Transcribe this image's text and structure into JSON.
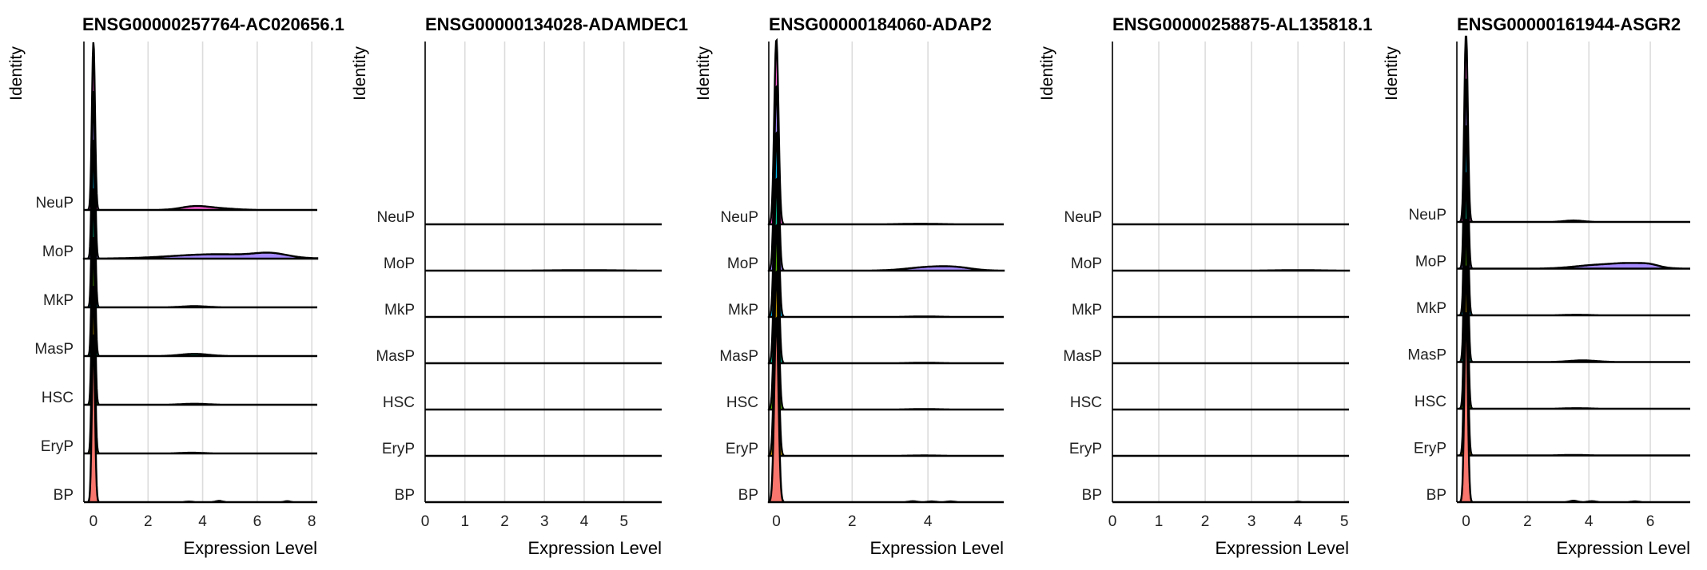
{
  "chart_data": [
    {
      "type": "ridgeline",
      "title": "ENSG00000257764-AC020656.1",
      "xlabel": "Expression Level",
      "ylabel": "Identity",
      "categories": [
        "BP",
        "EryP",
        "HSC",
        "MasP",
        "MkP",
        "MoP",
        "NeuP"
      ],
      "xlim": [
        -0.35,
        8.2
      ],
      "xticks": [
        0,
        2,
        4,
        6,
        8
      ],
      "peak_height_rows": 3.45,
      "series": [
        {
          "name": "BP",
          "color": "#F8766D",
          "bumps": [
            [
              3.5,
              0.012,
              0.12
            ],
            [
              4.6,
              0.025,
              0.12
            ],
            [
              7.1,
              0.02,
              0.1
            ]
          ]
        },
        {
          "name": "EryP",
          "color": "#C49A00",
          "bumps": [
            [
              3.6,
              0.015,
              0.4
            ]
          ]
        },
        {
          "name": "HSC",
          "color": "#53B400",
          "bumps": [
            [
              3.7,
              0.02,
              0.45
            ]
          ]
        },
        {
          "name": "MasP",
          "color": "#00C094",
          "bumps": [
            [
              3.7,
              0.045,
              0.5
            ]
          ]
        },
        {
          "name": "MkP",
          "color": "#00B6EB",
          "bumps": [
            [
              3.7,
              0.025,
              0.45
            ]
          ]
        },
        {
          "name": "MoP",
          "color": "#A58AFF",
          "bumps": [
            [
              4.5,
              0.09,
              1.6
            ],
            [
              6.5,
              0.08,
              0.6
            ]
          ]
        },
        {
          "name": "NeuP",
          "color": "#FB61D7",
          "bumps": [
            [
              3.7,
              0.07,
              0.5
            ],
            [
              4.6,
              0.03,
              0.6
            ]
          ]
        }
      ]
    },
    {
      "type": "ridgeline",
      "title": "ENSG00000134028-ADAMDEC1",
      "xlabel": "Expression Level",
      "ylabel": "Identity",
      "categories": [
        "BP",
        "EryP",
        "HSC",
        "MasP",
        "MkP",
        "MoP",
        "NeuP"
      ],
      "xlim": [
        0,
        5.95
      ],
      "xticks": [
        0,
        1,
        2,
        3,
        4,
        5
      ],
      "peak_height_rows": 0,
      "series": [
        {
          "name": "BP",
          "color": "#F8766D",
          "bumps": []
        },
        {
          "name": "EryP",
          "color": "#C49A00",
          "bumps": []
        },
        {
          "name": "HSC",
          "color": "#53B400",
          "bumps": []
        },
        {
          "name": "MasP",
          "color": "#00C094",
          "bumps": []
        },
        {
          "name": "MkP",
          "color": "#00B6EB",
          "bumps": []
        },
        {
          "name": "MoP",
          "color": "#A58AFF",
          "bumps": [
            [
              4.0,
              0.01,
              0.8
            ]
          ]
        },
        {
          "name": "NeuP",
          "color": "#FB61D7",
          "bumps": []
        }
      ]
    },
    {
      "type": "ridgeline",
      "title": "ENSG00000184060-ADAP2",
      "xlabel": "Expression Level",
      "ylabel": "Identity",
      "categories": [
        "BP",
        "EryP",
        "HSC",
        "MasP",
        "MkP",
        "MoP",
        "NeuP"
      ],
      "xlim": [
        -0.2,
        6.0
      ],
      "xticks": [
        0,
        2,
        4
      ],
      "peak_height_rows": 4.0,
      "series": [
        {
          "name": "BP",
          "color": "#F8766D",
          "bumps": [
            [
              3.6,
              0.02,
              0.1
            ],
            [
              4.1,
              0.015,
              0.1
            ],
            [
              4.6,
              0.015,
              0.1
            ]
          ]
        },
        {
          "name": "EryP",
          "color": "#C49A00",
          "bumps": [
            [
              3.9,
              0.008,
              0.4
            ]
          ]
        },
        {
          "name": "HSC",
          "color": "#53B400",
          "bumps": [
            [
              3.9,
              0.01,
              0.4
            ]
          ]
        },
        {
          "name": "MasP",
          "color": "#00C094",
          "bumps": [
            [
              3.9,
              0.01,
              0.4
            ]
          ]
        },
        {
          "name": "MkP",
          "color": "#00B6EB",
          "bumps": [
            [
              3.9,
              0.01,
              0.4
            ]
          ]
        },
        {
          "name": "MoP",
          "color": "#A58AFF",
          "bumps": [
            [
              4.1,
              0.08,
              0.6
            ],
            [
              4.8,
              0.04,
              0.4
            ]
          ]
        },
        {
          "name": "NeuP",
          "color": "#FB61D7",
          "bumps": [
            [
              3.8,
              0.012,
              0.5
            ]
          ]
        }
      ]
    },
    {
      "type": "ridgeline",
      "title": "ENSG00000258875-AL135818.1",
      "xlabel": "Expression Level",
      "ylabel": "Identity",
      "categories": [
        "BP",
        "EryP",
        "HSC",
        "MasP",
        "MkP",
        "MoP",
        "NeuP"
      ],
      "xlim": [
        0,
        5.1
      ],
      "xticks": [
        0,
        1,
        2,
        3,
        4,
        5
      ],
      "peak_height_rows": 0,
      "series": [
        {
          "name": "BP",
          "color": "#F8766D",
          "bumps": [
            [
              4.0,
              0.01,
              0.05
            ]
          ]
        },
        {
          "name": "EryP",
          "color": "#C49A00",
          "bumps": []
        },
        {
          "name": "HSC",
          "color": "#53B400",
          "bumps": []
        },
        {
          "name": "MasP",
          "color": "#00C094",
          "bumps": []
        },
        {
          "name": "MkP",
          "color": "#00B6EB",
          "bumps": []
        },
        {
          "name": "MoP",
          "color": "#A58AFF",
          "bumps": [
            [
              4.0,
              0.01,
              0.5
            ]
          ]
        },
        {
          "name": "NeuP",
          "color": "#FB61D7",
          "bumps": []
        }
      ]
    },
    {
      "type": "ridgeline",
      "title": "ENSG00000161944-ASGR2",
      "xlabel": "Expression Level",
      "ylabel": "Identity",
      "categories": [
        "BP",
        "EryP",
        "HSC",
        "MasP",
        "MkP",
        "MoP",
        "NeuP"
      ],
      "xlim": [
        -0.3,
        7.3
      ],
      "xticks": [
        0,
        2,
        4,
        6
      ],
      "peak_height_rows": 4.1,
      "series": [
        {
          "name": "BP",
          "color": "#F8766D",
          "bumps": [
            [
              3.5,
              0.03,
              0.12
            ],
            [
              4.1,
              0.02,
              0.12
            ],
            [
              5.5,
              0.015,
              0.12
            ]
          ]
        },
        {
          "name": "EryP",
          "color": "#C49A00",
          "bumps": [
            [
              3.5,
              0.01,
              0.4
            ]
          ]
        },
        {
          "name": "HSC",
          "color": "#53B400",
          "bumps": [
            [
              3.6,
              0.012,
              0.4
            ]
          ]
        },
        {
          "name": "MasP",
          "color": "#00C094",
          "bumps": [
            [
              3.8,
              0.035,
              0.45
            ]
          ]
        },
        {
          "name": "MkP",
          "color": "#00B6EB",
          "bumps": [
            [
              3.6,
              0.012,
              0.4
            ]
          ]
        },
        {
          "name": "MoP",
          "color": "#A58AFF",
          "bumps": [
            [
              4.2,
              0.07,
              0.7
            ],
            [
              5.4,
              0.1,
              0.6
            ],
            [
              6.0,
              0.04,
              0.3
            ]
          ]
        },
        {
          "name": "NeuP",
          "color": "#FB61D7",
          "bumps": [
            [
              3.5,
              0.03,
              0.3
            ]
          ]
        }
      ]
    }
  ]
}
